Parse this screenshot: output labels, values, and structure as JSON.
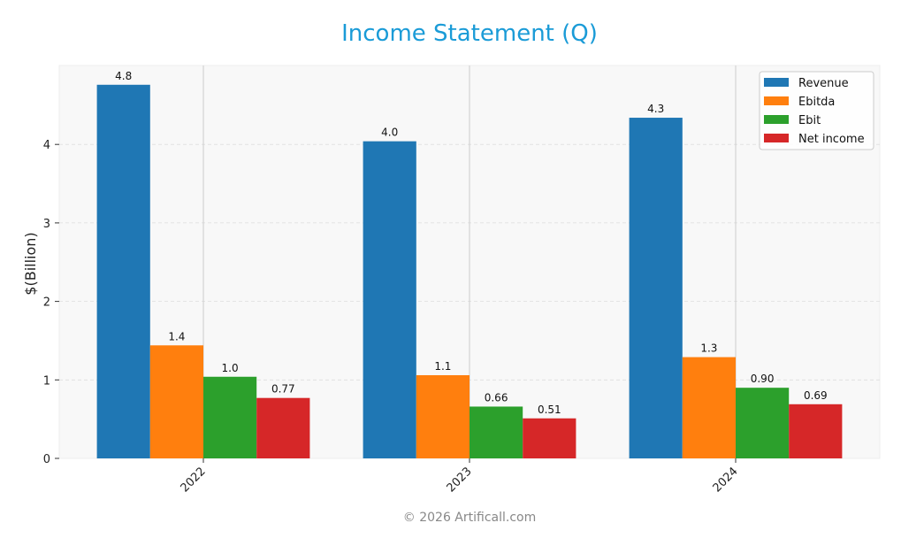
{
  "chart_data": {
    "type": "bar",
    "title": "Income Statement (Q)",
    "xlabel": "",
    "ylabel": "$(Billion)",
    "ylim": [
      0,
      4.98
    ],
    "yticks": [
      0,
      1,
      2,
      3,
      4
    ],
    "categories": [
      "2022",
      "2023",
      "2024"
    ],
    "series": [
      {
        "name": "Revenue",
        "color": "#1f77b4",
        "values": [
          4.76,
          4.04,
          4.34
        ],
        "labels": [
          "4.8",
          "4.0",
          "4.3"
        ]
      },
      {
        "name": "Ebitda",
        "color": "#ff7f0e",
        "values": [
          1.44,
          1.06,
          1.29
        ],
        "labels": [
          "1.4",
          "1.1",
          "1.3"
        ]
      },
      {
        "name": "Ebit",
        "color": "#2ca02c",
        "values": [
          1.04,
          0.66,
          0.9
        ],
        "labels": [
          "1.0",
          "0.66",
          "0.90"
        ]
      },
      {
        "name": "Net income",
        "color": "#d62728",
        "values": [
          0.77,
          0.51,
          0.69
        ],
        "labels": [
          "0.77",
          "0.51",
          "0.69"
        ]
      }
    ],
    "grid": true,
    "legend_position": "upper right"
  },
  "footer": "© 2026 Artificall.com"
}
